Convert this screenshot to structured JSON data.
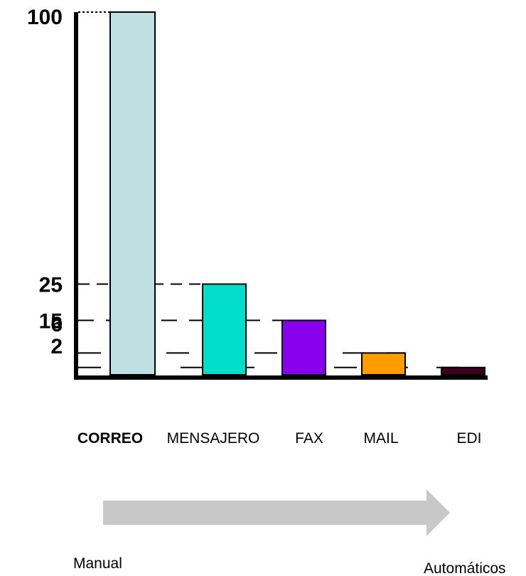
{
  "chart_data": {
    "type": "bar",
    "categories": [
      "CORREO",
      "MENSAJERO",
      "FAX",
      "MAIL",
      "EDI"
    ],
    "values": [
      100,
      25,
      15,
      6,
      2
    ],
    "colors": [
      "#bfe0e3",
      "#00ddc8",
      "#8800ee",
      "#ff9d00",
      "#3d0020"
    ],
    "bold_categories": [
      "CORREO"
    ],
    "yticks": [
      100,
      25,
      15,
      6,
      2
    ],
    "ylim": [
      0,
      100
    ],
    "title": "",
    "xlabel": "",
    "ylabel": "",
    "grid": false,
    "legend": "none"
  },
  "arrow": {
    "start_label": "Manual",
    "end_label": "Automáticos",
    "color": "#c8c8c8"
  }
}
